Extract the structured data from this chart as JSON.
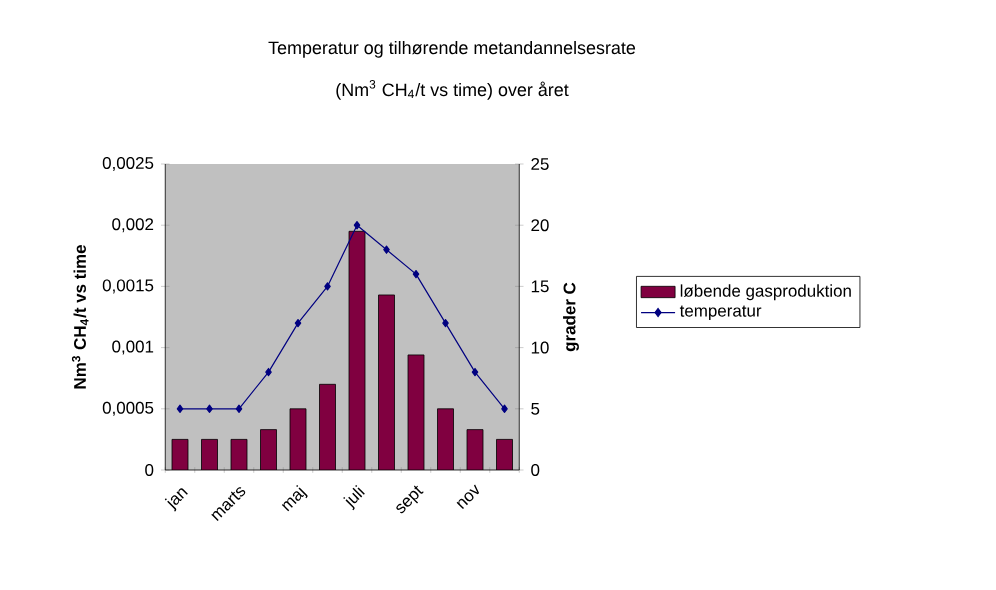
{
  "chart_data": {
    "type": "bar",
    "title": "Temperatur og tilhørende metandannelsesrate",
    "subtitle": "(Nm$^{3}$ CH$_{4}$/t vs time) over året",
    "ylabel": "Nm$^{3}$ CH$_{4}$/t vs time",
    "y2label": "grader C",
    "categories": [
      "jan",
      null,
      "marts",
      null,
      "maj",
      null,
      "juli",
      null,
      "sept",
      null,
      "nov",
      null
    ],
    "ylim": [
      0,
      0.0025
    ],
    "yticks": [
      0,
      {
        "value": 0.0005,
        "label": "0,0005"
      },
      {
        "value": 0.001,
        "label": "0,001"
      },
      {
        "value": 0.0015,
        "label": "0,0015"
      },
      {
        "value": 0.002,
        "label": "0,002"
      },
      {
        "value": 0.0025,
        "label": "0,0025"
      }
    ],
    "y2lim": [
      0,
      25
    ],
    "y2ticks": [
      0,
      5,
      10,
      15,
      20,
      25
    ],
    "legend": "right",
    "marker": "diamond",
    "series": [
      {
        "name": "løbende gasproduktion",
        "color": "#800040",
        "values": [
          0.00025,
          0.00025,
          0.00025,
          0.00033,
          0.0005,
          0.0007,
          0.00195,
          0.00143,
          0.00094,
          0.0005,
          0.00033,
          0.00025
        ]
      },
      {
        "name": "temperatur",
        "type": "line",
        "axis": "y2",
        "color": "#000080",
        "values": [
          5,
          5,
          5,
          8,
          12,
          15,
          20,
          18,
          16,
          12,
          8,
          5
        ]
      }
    ]
  }
}
